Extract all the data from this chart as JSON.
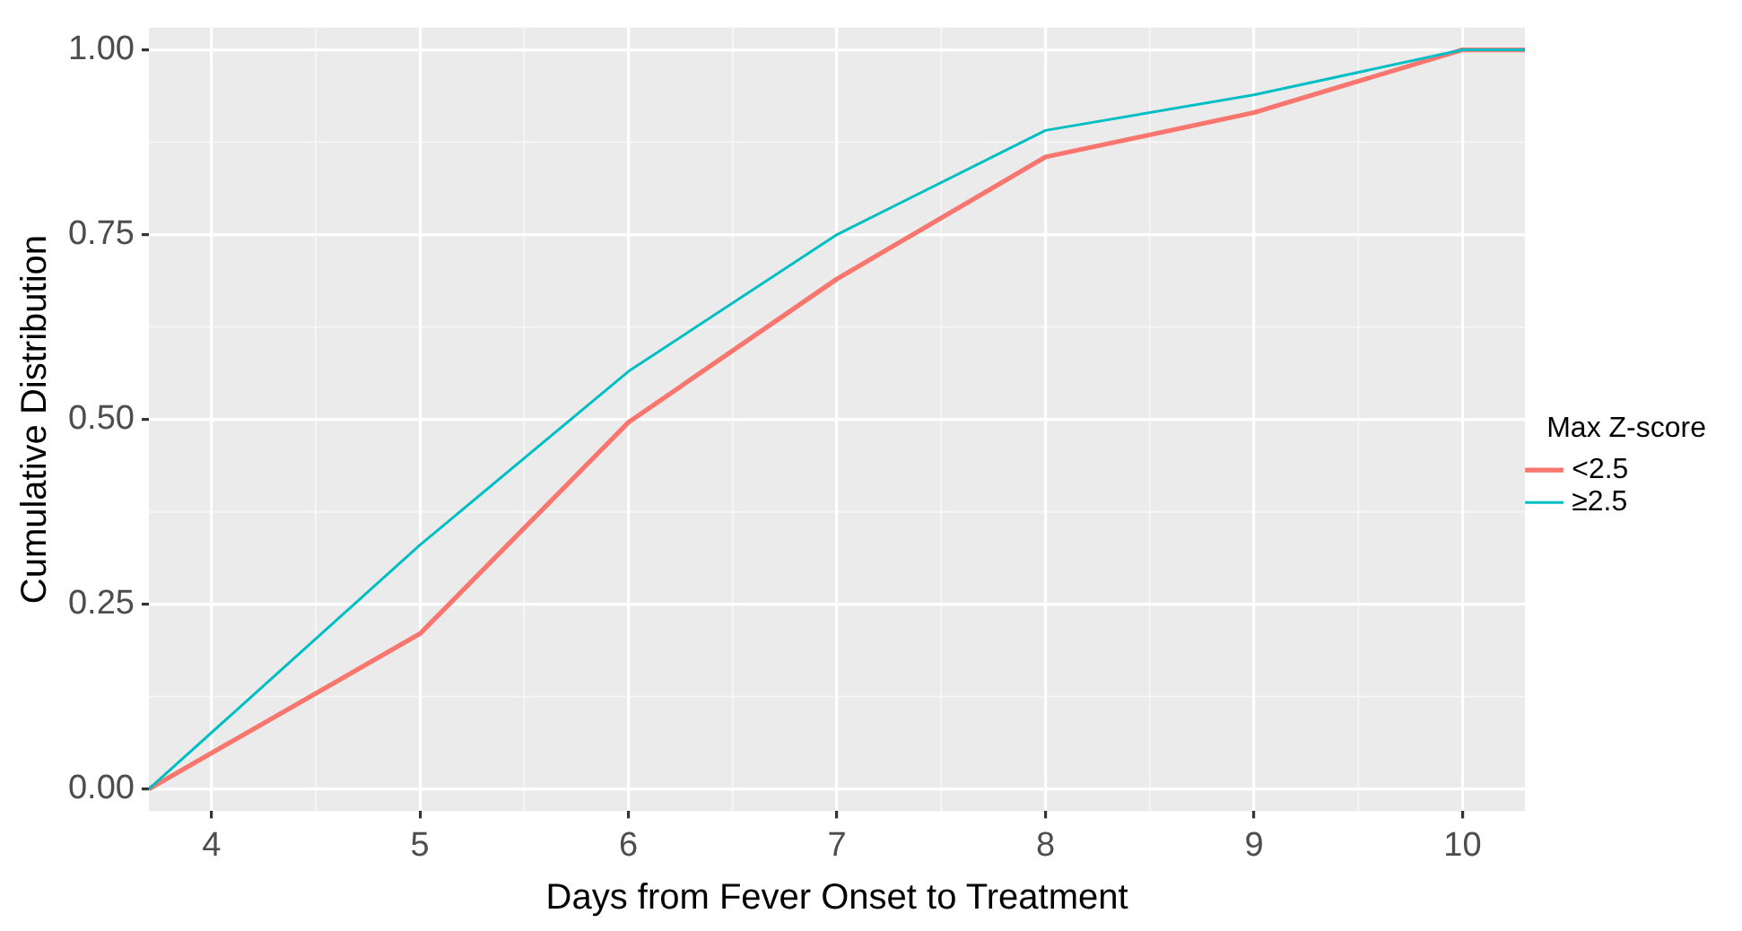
{
  "chart_data": {
    "type": "line",
    "xlabel": "Days from Fever Onset to Treatment",
    "ylabel": "Cumulative Distribution",
    "legend_title": "Max Z-score",
    "x": [
      3.7,
      5,
      6,
      7,
      8,
      9,
      10,
      10.3
    ],
    "series": [
      {
        "name": "<2.5",
        "color": "#f8766d",
        "values": [
          0,
          0.21,
          0.496,
          0.69,
          0.855,
          0.915,
          1,
          1
        ]
      },
      {
        "name": "≥2.5",
        "color": "#00bfc4",
        "values": [
          0,
          0.33,
          0.565,
          0.75,
          0.891,
          0.939,
          1,
          1
        ]
      }
    ],
    "xlim": [
      3.7,
      10.3
    ],
    "xticks": [
      4,
      5,
      6,
      7,
      8,
      9,
      10
    ],
    "ylim": [
      -0.03,
      1.03
    ],
    "yticks": [
      {
        "value": 0,
        "label": "0.00"
      },
      {
        "value": 0.25,
        "label": "0.25"
      },
      {
        "value": 0.5,
        "label": "0.50"
      },
      {
        "value": 0.75,
        "label": "0.75"
      },
      {
        "value": 1,
        "label": "1.00"
      }
    ],
    "grid": true,
    "legend": "right",
    "marker": "none",
    "line_style": "solid"
  }
}
